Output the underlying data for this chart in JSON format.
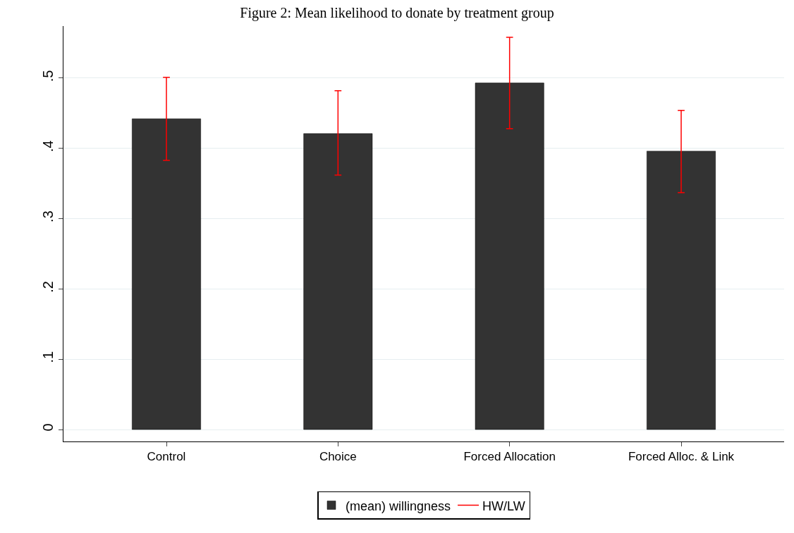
{
  "chart_data": {
    "type": "bar",
    "title": "Figure 2: Mean likelihood to donate by treatment group",
    "categories": [
      "Control",
      "Choice",
      "Forced Allocation",
      "Forced Alloc. & Link"
    ],
    "series": [
      {
        "name": "(mean) willingness",
        "color": "#333333",
        "values": [
          0.442,
          0.421,
          0.493,
          0.396
        ],
        "errors": [
          [
            0.383,
            0.501
          ],
          [
            0.362,
            0.482
          ],
          [
            0.428,
            0.558
          ],
          [
            0.337,
            0.454
          ]
        ]
      }
    ],
    "annotations": [
      "HW/LW"
    ],
    "ylim": [
      -0.017,
      0.574
    ],
    "yticks": [
      {
        "value": 0,
        "label": "0"
      },
      {
        "value": 0.1,
        "label": ".1"
      },
      {
        "value": 0.2,
        "label": ".2"
      },
      {
        "value": 0.3,
        "label": ".3"
      },
      {
        "value": 0.4,
        "label": ".4"
      },
      {
        "value": 0.5,
        "label": ".5"
      }
    ],
    "grid": "y",
    "legend": "bottom"
  }
}
